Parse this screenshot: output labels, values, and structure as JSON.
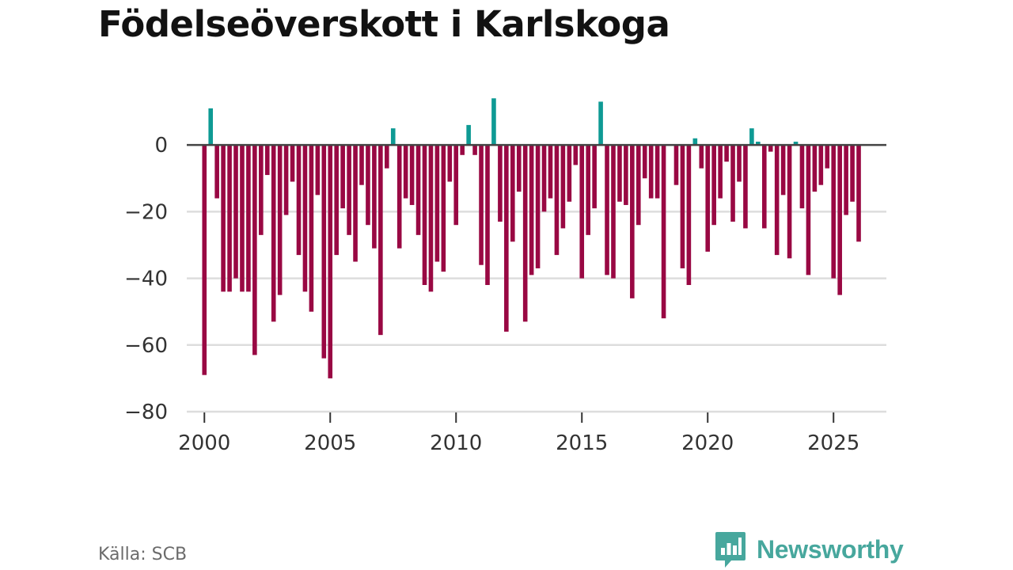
{
  "title": "Födelseöverskott i Karlskoga",
  "source": "Källa: SCB",
  "brand": "Newsworthy",
  "colors": {
    "positive": "#0e9a94",
    "negative": "#990843",
    "grid": "#dddddd",
    "zero_line": "#444444",
    "brand": "#47a79d"
  },
  "chart_data": {
    "type": "bar",
    "title": "Födelseöverskott i Karlskoga",
    "xlabel": "",
    "ylabel": "",
    "xlim": [
      1999.3,
      2027.1
    ],
    "ylim": [
      -80,
      15
    ],
    "y_ticks": [
      0,
      -20,
      -40,
      -60,
      -80
    ],
    "y_tick_labels": [
      "0",
      "−20",
      "−40",
      "−60",
      "−80"
    ],
    "x_ticks": [
      2000,
      2005,
      2010,
      2015,
      2020,
      2025
    ],
    "x_tick_labels": [
      "2000",
      "2005",
      "2010",
      "2015",
      "2020",
      "2025"
    ],
    "grid": true,
    "x_start": 2000.0,
    "x_step": 0.25,
    "values": [
      -69,
      11,
      -16,
      -44,
      -44,
      -40,
      -44,
      -44,
      -63,
      -27,
      -9,
      -53,
      -45,
      -21,
      -11,
      -33,
      -44,
      -50,
      -15,
      -64,
      -70,
      -33,
      -19,
      -27,
      -35,
      -12,
      -24,
      -31,
      -57,
      -7,
      5,
      -31,
      -16,
      -18,
      -27,
      -42,
      -44,
      -35,
      -38,
      -11,
      -24,
      -3,
      6,
      -3,
      -36,
      -42,
      14,
      -23,
      -56,
      -29,
      -14,
      -53,
      -39,
      -37,
      -20,
      -16,
      -33,
      -25,
      -17,
      -6,
      -40,
      -27,
      -19,
      13,
      -39,
      -40,
      -17,
      -18,
      -46,
      -24,
      -10,
      -16,
      -16,
      -52,
      0,
      -12,
      -37,
      -42,
      2,
      -7,
      -32,
      -24,
      -16,
      -5,
      -23,
      -11,
      -25,
      5,
      1,
      -25,
      -2,
      -33,
      -15,
      -34,
      1,
      -19,
      -39,
      -14,
      -12,
      -7,
      -40,
      -45,
      -21,
      -17,
      -29
    ]
  }
}
